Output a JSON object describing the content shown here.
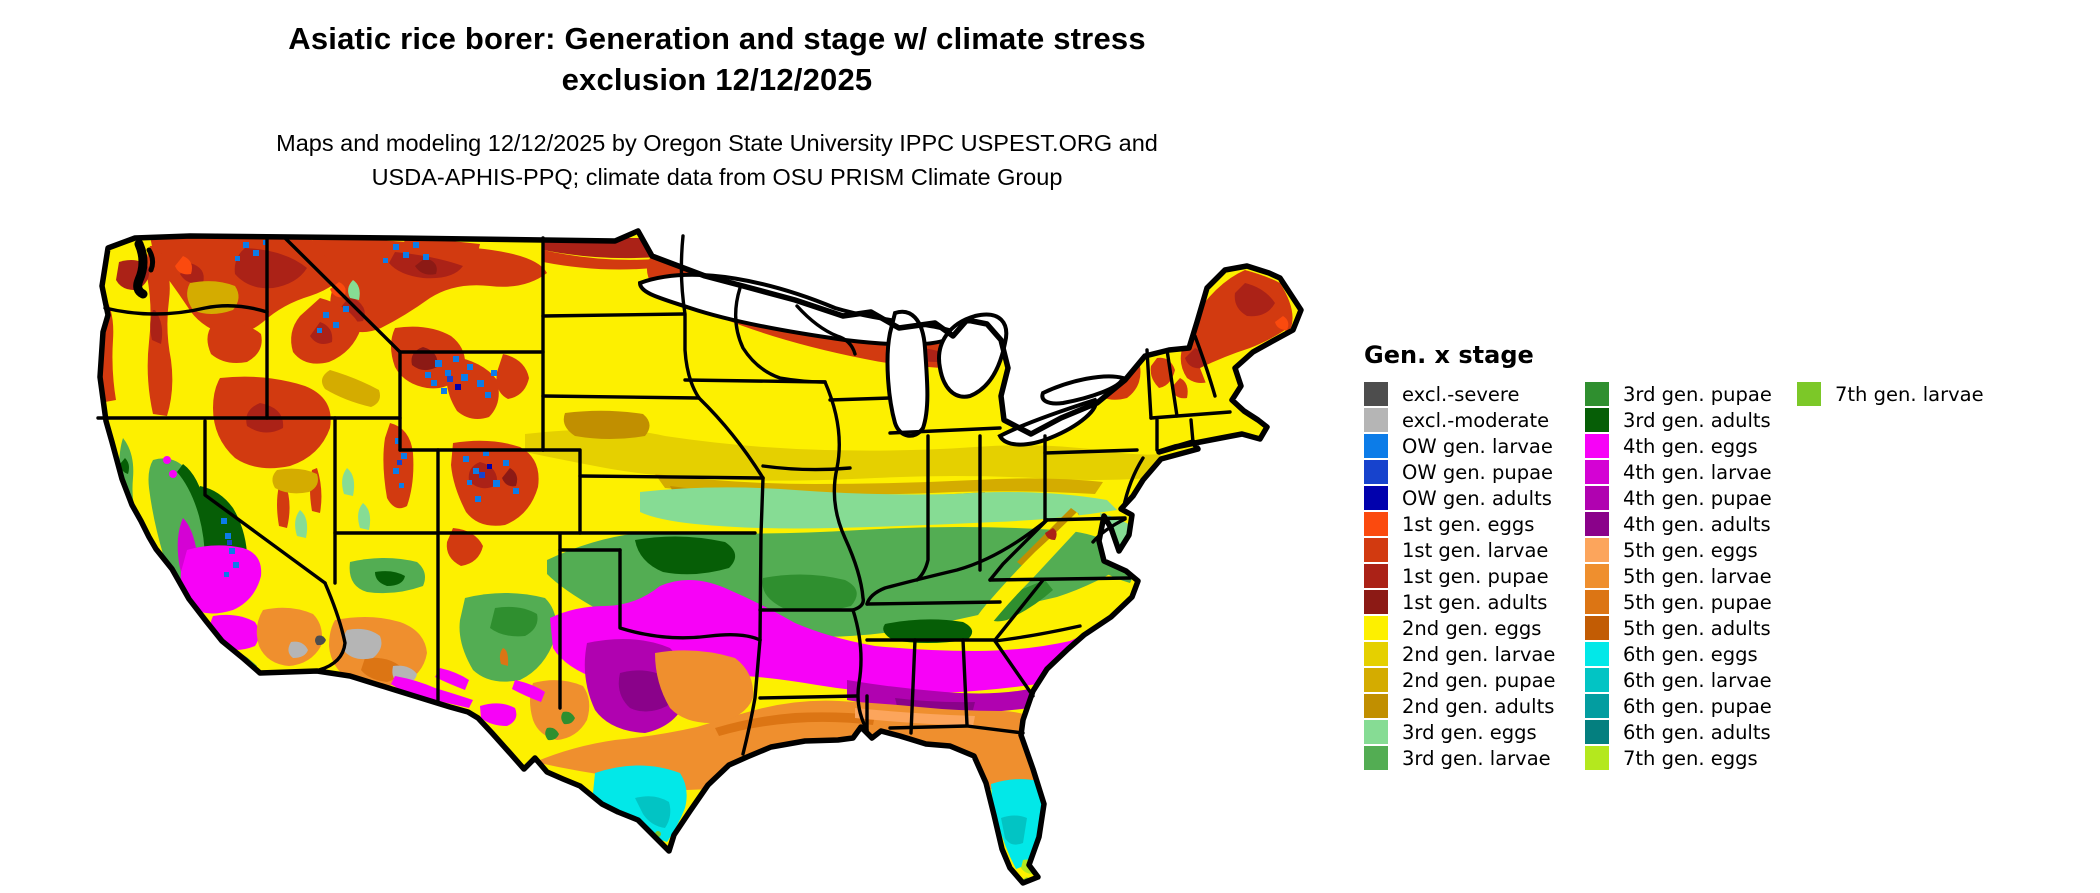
{
  "header": {
    "title_line1": "Asiatic rice borer: Generation and stage w/ climate stress",
    "title_line2": "exclusion 12/12/2025",
    "subtitle_line1": "Maps and modeling 12/12/2025 by Oregon State University IPPC USPEST.ORG and",
    "subtitle_line2": "USDA-APHIS-PPQ; climate data from OSU PRISM Climate Group"
  },
  "legend": {
    "title": "Gen. x stage",
    "columns": [
      {
        "items": [
          {
            "label": "excl.-severe",
            "color": "#4d4d4d"
          },
          {
            "label": "excl.-moderate",
            "color": "#b5b5b5"
          },
          {
            "label": "OW gen. larvae",
            "color": "#0c7ce8"
          },
          {
            "label": "OW gen. pupae",
            "color": "#1743cd"
          },
          {
            "label": "OW gen. adults",
            "color": "#0101ad"
          },
          {
            "label": "1st gen. eggs",
            "color": "#fb4a0e"
          },
          {
            "label": "1st gen. larvae",
            "color": "#d23a10"
          },
          {
            "label": "1st gen. pupae",
            "color": "#ab2217"
          },
          {
            "label": "1st gen. adults",
            "color": "#8c1a15"
          },
          {
            "label": "2nd gen. eggs",
            "color": "#fdf000"
          },
          {
            "label": "2nd gen. larvae",
            "color": "#e5d000"
          },
          {
            "label": "2nd gen. pupae",
            "color": "#d4ac00"
          },
          {
            "label": "2nd gen. adults",
            "color": "#c18f00"
          },
          {
            "label": "3rd gen. eggs",
            "color": "#86dc94"
          },
          {
            "label": "3rd gen. larvae",
            "color": "#53ad53"
          }
        ]
      },
      {
        "items": [
          {
            "label": "3rd gen. pupae",
            "color": "#2f8f2f"
          },
          {
            "label": "3rd gen. adults",
            "color": "#065e06"
          },
          {
            "label": "4th gen. eggs",
            "color": "#f702f7"
          },
          {
            "label": "4th gen. larvae",
            "color": "#d402d4"
          },
          {
            "label": "4th gen. pupae",
            "color": "#b002b0"
          },
          {
            "label": "4th gen. adults",
            "color": "#8a028a"
          },
          {
            "label": "5th gen. eggs",
            "color": "#fca55c"
          },
          {
            "label": "5th gen. larvae",
            "color": "#ef8f2e"
          },
          {
            "label": "5th gen. pupae",
            "color": "#dc7514"
          },
          {
            "label": "5th gen. adults",
            "color": "#c25c04"
          },
          {
            "label": "6th gen. eggs",
            "color": "#02e8e8"
          },
          {
            "label": "6th gen. larvae",
            "color": "#02c4c4"
          },
          {
            "label": "6th gen. pupae",
            "color": "#039da0"
          },
          {
            "label": "6th gen. adults",
            "color": "#047f7f"
          },
          {
            "label": "7th gen. eggs",
            "color": "#b4e81e"
          }
        ]
      },
      {
        "items": [
          {
            "label": "7th gen. larvae",
            "color": "#7cc828"
          }
        ]
      }
    ]
  }
}
